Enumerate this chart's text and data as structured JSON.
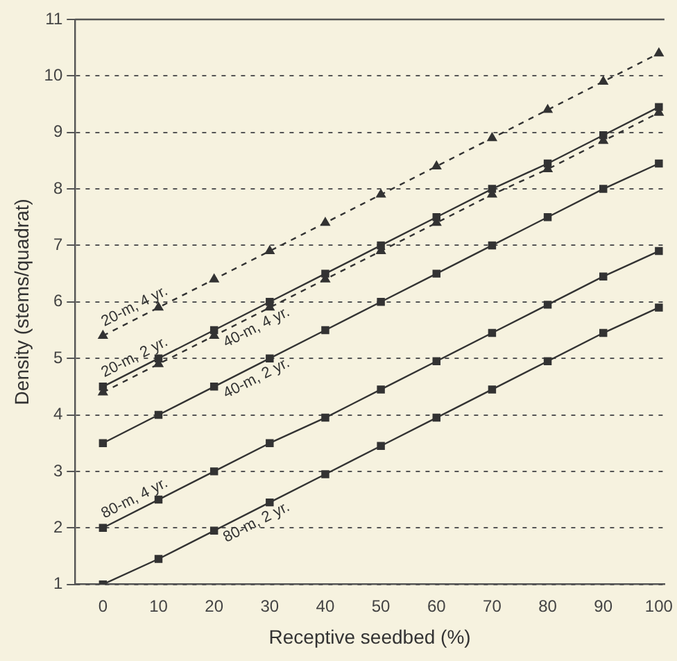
{
  "chart_data": {
    "type": "line",
    "xlabel": "Receptive seedbed (%)",
    "ylabel": "Density (stems/quadrat)",
    "x": [
      0,
      10,
      20,
      30,
      40,
      50,
      60,
      70,
      80,
      90,
      100
    ],
    "xlim": [
      -5,
      101
    ],
    "xticks": [
      0,
      10,
      20,
      30,
      40,
      50,
      60,
      70,
      80,
      90,
      100
    ],
    "ylim": [
      1,
      11
    ],
    "yticks": [
      1,
      2,
      3,
      4,
      5,
      6,
      7,
      8,
      9,
      10,
      11
    ],
    "grid": "y",
    "legend": false,
    "series": [
      {
        "name": "20-m, 4 yr.",
        "color": "#333333",
        "marker": "triangle",
        "line_style": "dashed",
        "values": [
          5.4,
          5.9,
          6.4,
          6.9,
          7.4,
          7.9,
          8.4,
          8.9,
          9.4,
          9.9,
          10.4
        ]
      },
      {
        "name": "40-m, 4 yr.",
        "color": "#333333",
        "marker": "triangle",
        "line_style": "dashed",
        "values": [
          4.4,
          4.9,
          5.4,
          5.9,
          6.4,
          6.9,
          7.4,
          7.9,
          8.35,
          8.85,
          9.35
        ]
      },
      {
        "name": "20-m, 2 yr.",
        "color": "#333333",
        "marker": "square",
        "line_style": "solid",
        "values": [
          4.5,
          5.0,
          5.5,
          6.0,
          6.5,
          7.0,
          7.5,
          8.0,
          8.45,
          8.95,
          9.45
        ]
      },
      {
        "name": "40-m, 2 yr.",
        "color": "#333333",
        "marker": "square",
        "line_style": "solid",
        "values": [
          3.5,
          4.0,
          4.5,
          5.0,
          5.5,
          6.0,
          6.5,
          7.0,
          7.5,
          8.0,
          8.45
        ]
      },
      {
        "name": "80-m, 4 yr.",
        "color": "#333333",
        "marker": "square",
        "line_style": "solid",
        "values": [
          2.0,
          2.5,
          3.0,
          3.5,
          3.95,
          4.45,
          4.95,
          5.45,
          5.95,
          6.45,
          6.9
        ]
      },
      {
        "name": "80-m, 2 yr.",
        "color": "#333333",
        "marker": "square",
        "line_style": "solid",
        "values": [
          1.0,
          1.45,
          1.95,
          2.45,
          2.95,
          3.45,
          3.95,
          4.45,
          4.95,
          5.45,
          5.9
        ]
      }
    ]
  }
}
